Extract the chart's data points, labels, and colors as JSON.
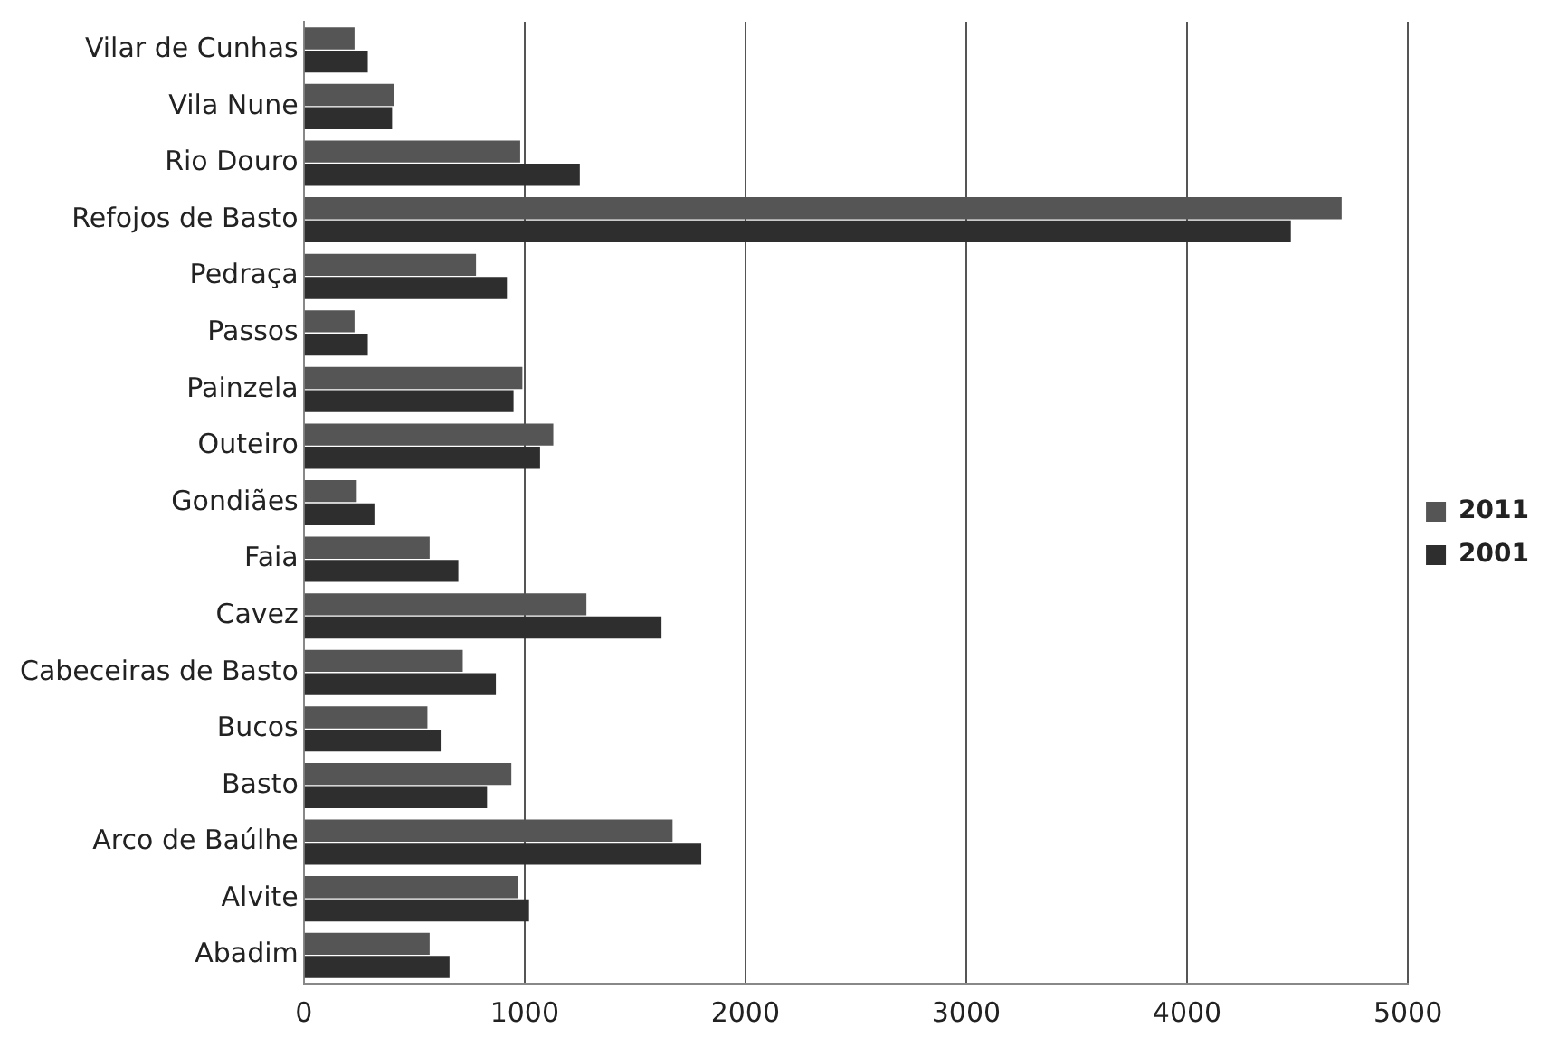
{
  "chart_data": {
    "type": "bar",
    "orientation": "horizontal",
    "categories": [
      "Vilar de Cunhas",
      "Vila Nune",
      "Rio Douro",
      "Refojos de Basto",
      "Pedraça",
      "Passos",
      "Painzela",
      "Outeiro",
      "Gondiães",
      "Faia",
      "Cavez",
      "Cabeceiras de Basto",
      "Bucos",
      "Basto",
      "Arco de Baúlhe",
      "Alvite",
      "Abadim"
    ],
    "series": [
      {
        "name": "2011",
        "color": "#555555",
        "values": [
          230,
          410,
          980,
          4700,
          780,
          230,
          990,
          1130,
          240,
          570,
          1280,
          720,
          560,
          940,
          1670,
          970,
          570
        ]
      },
      {
        "name": "2001",
        "color": "#2e2e2e",
        "values": [
          290,
          400,
          1250,
          4470,
          920,
          290,
          950,
          1070,
          320,
          700,
          1620,
          870,
          620,
          830,
          1800,
          1020,
          660
        ]
      }
    ],
    "xlim": [
      0,
      5000
    ],
    "xticks": [
      0,
      1000,
      2000,
      3000,
      4000,
      5000
    ],
    "grid": "x",
    "legend": "right"
  }
}
